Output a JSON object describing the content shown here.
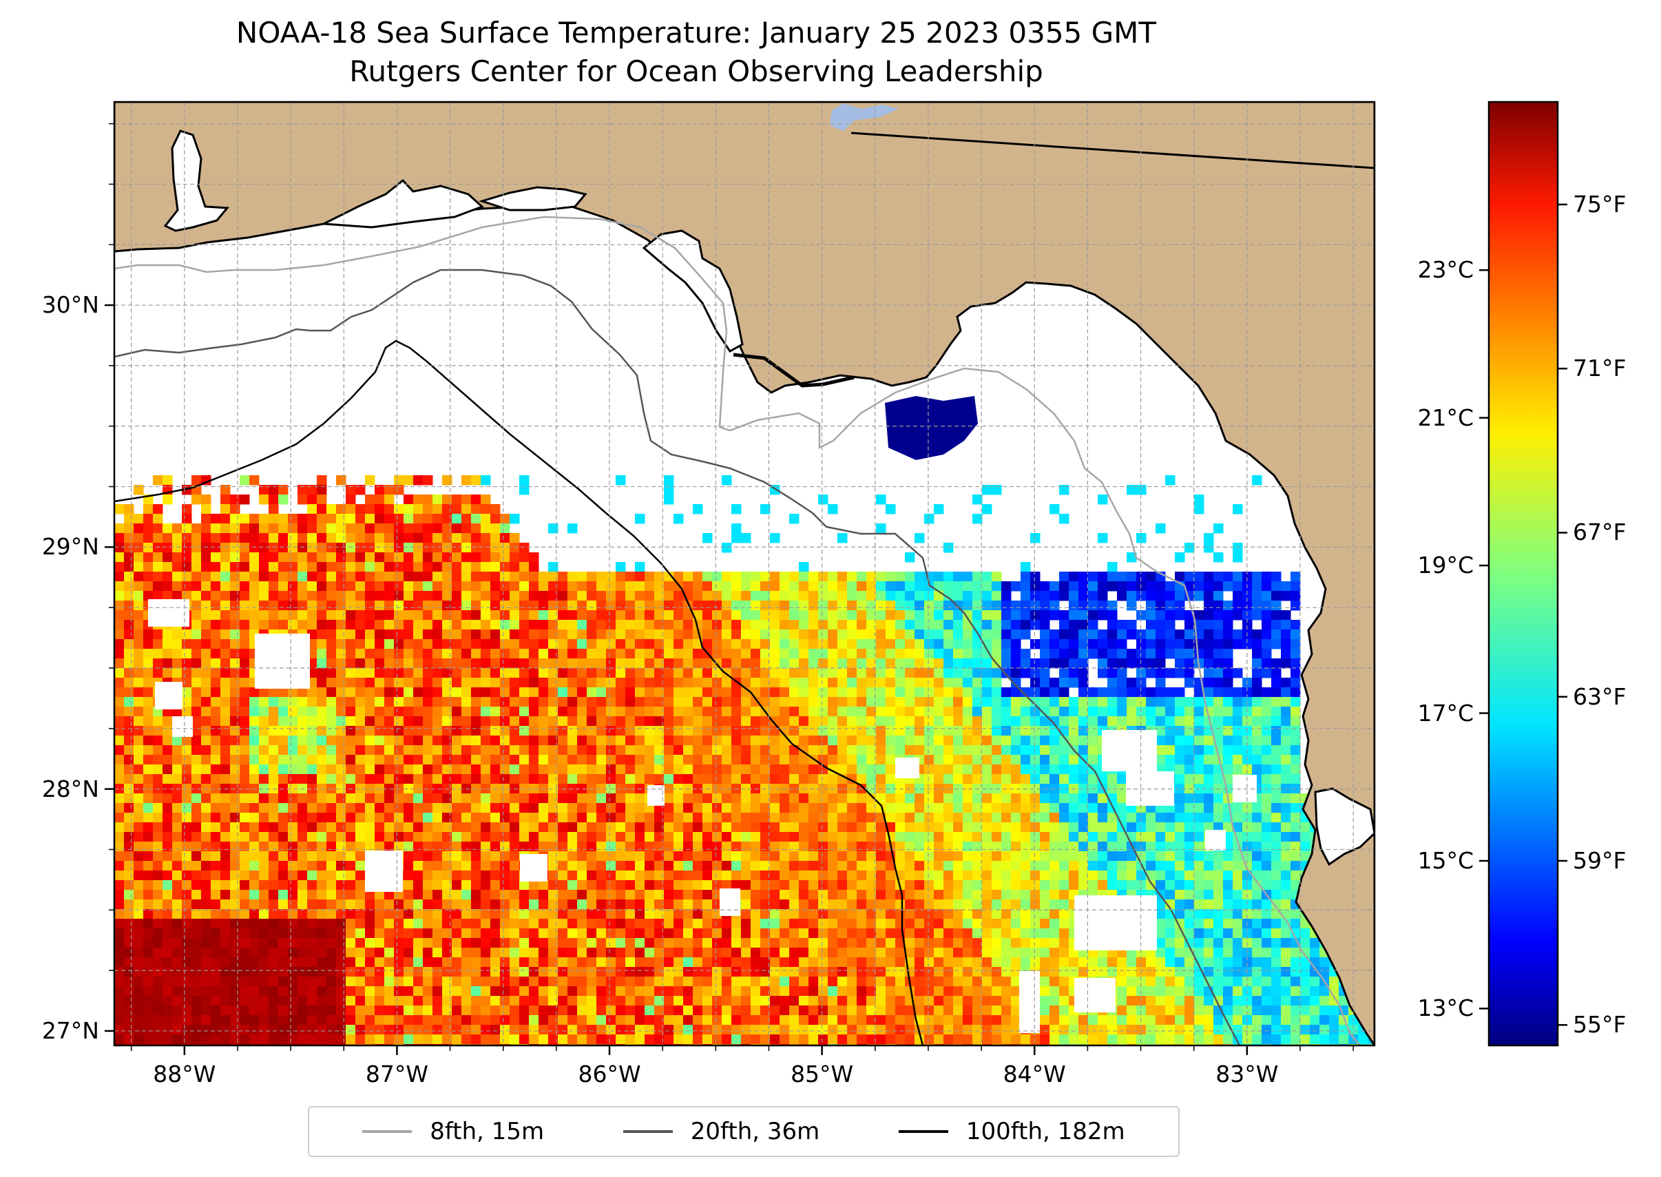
{
  "title": "NOAA-18 Sea Surface Temperature: January 25 2023 0355 GMT",
  "subtitle": "Rutgers Center for Ocean Observing Leadership",
  "chart_data": {
    "type": "heatmap",
    "title": "NOAA-18 Sea Surface Temperature: January 25 2023 0355 GMT",
    "subtitle": "Rutgers Center for Ocean Observing Leadership",
    "lon_range": [
      -88.33,
      -82.4
    ],
    "lat_range": [
      26.94,
      30.84
    ],
    "lon_ticks": [
      -88,
      -87,
      -86,
      -85,
      -84,
      -83
    ],
    "lat_ticks": [
      27,
      28,
      29,
      30
    ],
    "lon_tick_labels": [
      "88°W",
      "87°W",
      "86°W",
      "85°W",
      "84°W",
      "83°W"
    ],
    "lat_tick_labels": [
      "27°N",
      "28°N",
      "29°N",
      "30°N"
    ],
    "grid": true,
    "colormap": "jet",
    "colorbar": {
      "range_f": [
        54.5,
        77.5
      ],
      "fahrenheit_ticks": [
        55,
        59,
        63,
        67,
        71,
        75
      ],
      "fahrenheit_labels": [
        "55°F",
        "59°F",
        "63°F",
        "67°F",
        "71°F",
        "75°F"
      ],
      "celsius_ticks": [
        13,
        15,
        17,
        19,
        21,
        23
      ],
      "celsius_labels": [
        "13°C",
        "15°C",
        "17°C",
        "19°C",
        "21°C",
        "23°C"
      ]
    },
    "legend": {
      "position": "bottom-center",
      "entries": [
        {
          "label": "8fth, 15m",
          "color": "#a6a6a6"
        },
        {
          "label": "20fth, 36m",
          "color": "#555555"
        },
        {
          "label": "100fth, 182m",
          "color": "#000000"
        }
      ]
    },
    "colors": {
      "land": "#d2b48c",
      "no_data": "#ffffff",
      "lake": "#a5bde3"
    }
  }
}
